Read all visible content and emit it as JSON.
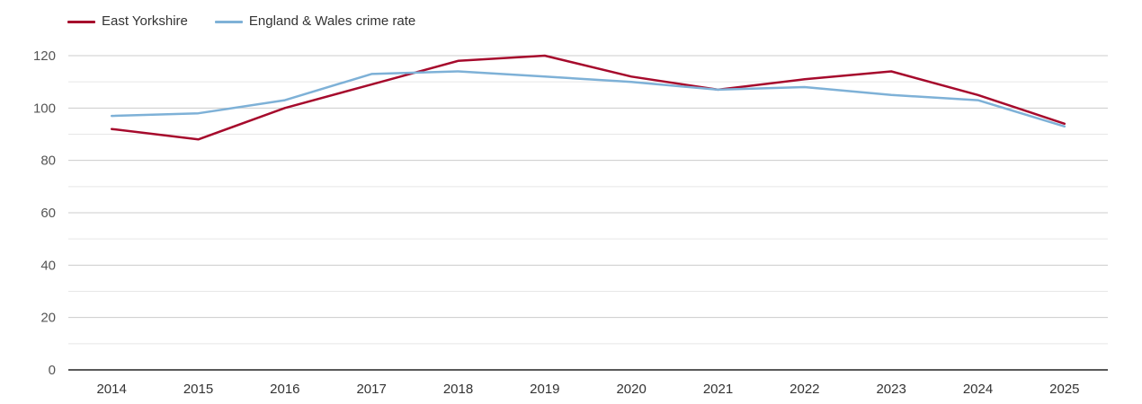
{
  "chart_data": {
    "type": "line",
    "title": "",
    "xlabel": "",
    "ylabel": "",
    "x": [
      "2014",
      "2015",
      "2016",
      "2017",
      "2018",
      "2019",
      "2020",
      "2021",
      "2022",
      "2023",
      "2024",
      "2025"
    ],
    "series": [
      {
        "name": "East Yorkshire",
        "color": "#a60a2c",
        "values": [
          92,
          88,
          100,
          109,
          118,
          120,
          112,
          107,
          111,
          114,
          105,
          94
        ]
      },
      {
        "name": "England & Wales crime rate",
        "color": "#7eb1d7",
        "values": [
          97,
          98,
          103,
          113,
          114,
          112,
          110,
          107,
          108,
          105,
          103,
          93
        ]
      }
    ],
    "ylim": [
      0,
      120
    ],
    "y_major_ticks": [
      0,
      20,
      40,
      60,
      80,
      100,
      120
    ],
    "y_minor_step": 10,
    "grid": "horizontal",
    "legend_position": "top-left",
    "colors": {
      "major_gridline": "#cccccc",
      "minor_gridline": "#e7e7e7",
      "axis_line": "#222222",
      "y_tick_label": "#555555",
      "x_tick_label": "#333333"
    }
  }
}
